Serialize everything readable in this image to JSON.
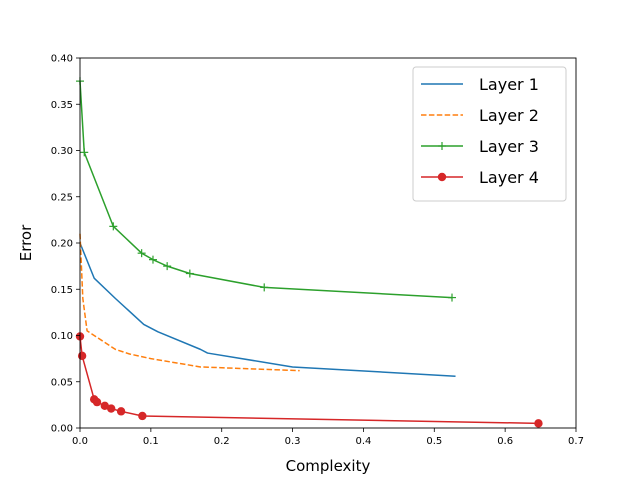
{
  "chart_data": {
    "type": "line",
    "title": "",
    "xlabel": "Complexity",
    "ylabel": "Error",
    "xlim": [
      0.0,
      0.7
    ],
    "ylim": [
      0.0,
      0.4
    ],
    "xticks": [
      "0.0",
      "0.1",
      "0.2",
      "0.3",
      "0.4",
      "0.5",
      "0.6",
      "0.7"
    ],
    "yticks": [
      "0.00",
      "0.05",
      "0.10",
      "0.15",
      "0.20",
      "0.25",
      "0.30",
      "0.35",
      "0.40"
    ],
    "grid": false,
    "legend_position": "top-right",
    "series": [
      {
        "name": "Layer 1",
        "color": "#1f77b4",
        "linestyle": "solid",
        "marker": "none",
        "x": [
          0.0,
          0.02,
          0.05,
          0.09,
          0.11,
          0.17,
          0.18,
          0.3,
          0.53
        ],
        "y": [
          0.2,
          0.162,
          0.14,
          0.112,
          0.104,
          0.085,
          0.081,
          0.066,
          0.056
        ]
      },
      {
        "name": "Layer 2",
        "color": "#ff7f0e",
        "linestyle": "dashed",
        "marker": "none",
        "x": [
          0.0,
          0.004,
          0.01,
          0.05,
          0.07,
          0.1,
          0.17,
          0.31
        ],
        "y": [
          0.21,
          0.14,
          0.105,
          0.085,
          0.08,
          0.075,
          0.066,
          0.062
        ]
      },
      {
        "name": "Layer 3",
        "color": "#2ca02c",
        "linestyle": "solid",
        "marker": "plus",
        "x": [
          0.0,
          0.006,
          0.047,
          0.087,
          0.103,
          0.123,
          0.155,
          0.26,
          0.525
        ],
        "y": [
          0.375,
          0.298,
          0.218,
          0.189,
          0.182,
          0.175,
          0.167,
          0.152,
          0.141
        ]
      },
      {
        "name": "Layer 4",
        "color": "#d62728",
        "linestyle": "solid",
        "marker": "circle",
        "x": [
          0.0,
          0.003,
          0.02,
          0.024,
          0.035,
          0.044,
          0.058,
          0.088,
          0.647
        ],
        "y": [
          0.099,
          0.078,
          0.031,
          0.028,
          0.024,
          0.021,
          0.018,
          0.013,
          0.005
        ]
      }
    ]
  }
}
